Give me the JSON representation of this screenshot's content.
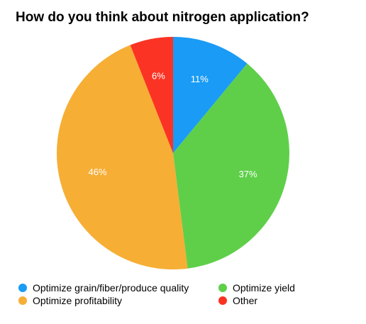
{
  "chart_data": {
    "type": "pie",
    "title": "How do you think about nitrogen application?",
    "slices": [
      {
        "label": "Optimize grain/fiber/produce quality",
        "value": 11,
        "value_label": "11%",
        "color": "#1a9bf5"
      },
      {
        "label": "Optimize yield",
        "value": 37,
        "value_label": "37%",
        "color": "#5fcf4a"
      },
      {
        "label": "Optimize profitability",
        "value": 46,
        "value_label": "46%",
        "color": "#f6ae35"
      },
      {
        "label": "Other",
        "value": 6,
        "value_label": "6%",
        "color": "#fb3324"
      }
    ],
    "legend_placement": "bottom"
  }
}
